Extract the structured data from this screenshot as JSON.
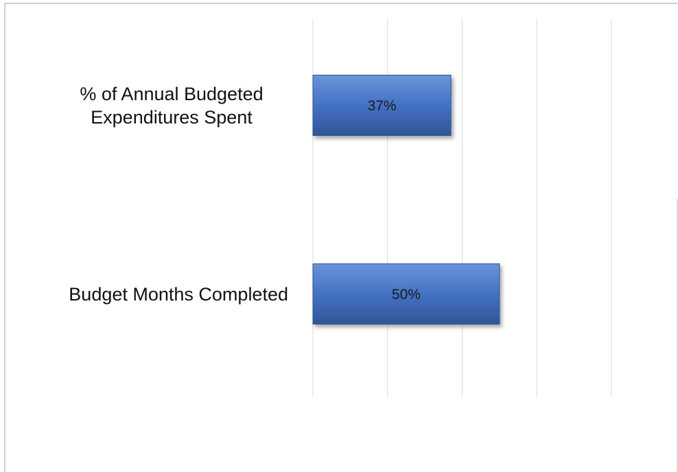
{
  "chart_data": {
    "type": "bar",
    "orientation": "horizontal",
    "categories": [
      "% of Annual Budgeted Expenditures Spent",
      "Budget Months Completed"
    ],
    "values": [
      37,
      50
    ],
    "value_labels": [
      "37%",
      "50%"
    ],
    "color": "#4472c4",
    "xlim": [
      0,
      80
    ],
    "xticks": [
      0,
      20,
      40,
      60,
      80
    ],
    "grid": true
  }
}
